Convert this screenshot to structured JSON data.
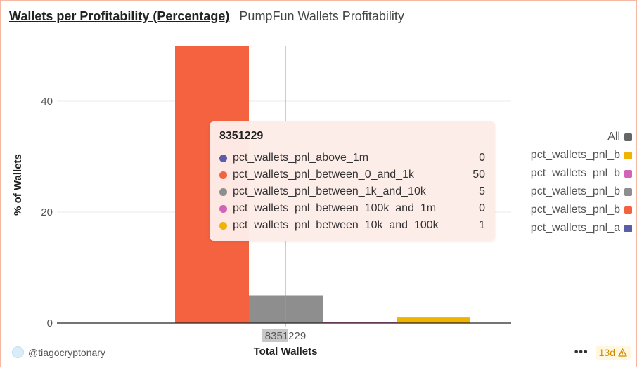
{
  "header": {
    "title": "Wallets per Profitability (Percentage)",
    "subtitle": "PumpFun Wallets Profitability"
  },
  "chart_data": {
    "type": "bar",
    "categories": [
      "8351229"
    ],
    "xlabel": "Total Wallets",
    "ylabel": "% of Wallets",
    "ylim": [
      0,
      50
    ],
    "yticks": [
      0,
      20,
      40
    ],
    "grid": true,
    "legend_position": "right",
    "series": [
      {
        "name": "pct_wallets_pnl_above_1m",
        "values": [
          0
        ],
        "color": "#5b5ea6"
      },
      {
        "name": "pct_wallets_pnl_between_0_and_1k",
        "values": [
          50
        ],
        "color": "#f4623f"
      },
      {
        "name": "pct_wallets_pnl_between_1k_and_10k",
        "values": [
          5
        ],
        "color": "#8e8e8e"
      },
      {
        "name": "pct_wallets_pnl_between_100k_and_1m",
        "values": [
          0
        ],
        "color": "#d263b8"
      },
      {
        "name": "pct_wallets_pnl_between_10k_and_100k",
        "values": [
          1
        ],
        "color": "#f0b400"
      }
    ]
  },
  "tooltip": {
    "title": "8351229",
    "rows": [
      {
        "label": "pct_wallets_pnl_above_1m",
        "value": "0",
        "color": "#5b5ea6"
      },
      {
        "label": "pct_wallets_pnl_between_0_and_1k",
        "value": "50",
        "color": "#f4623f"
      },
      {
        "label": "pct_wallets_pnl_between_1k_and_10k",
        "value": "5",
        "color": "#8e8e8e"
      },
      {
        "label": "pct_wallets_pnl_between_100k_and_1m",
        "value": "0",
        "color": "#d263b8"
      },
      {
        "label": "pct_wallets_pnl_between_10k_and_100k",
        "value": "1",
        "color": "#f0b400"
      }
    ]
  },
  "legend": {
    "items": [
      {
        "label": "All",
        "color": "#666666"
      },
      {
        "label": "pct_wallets_pnl_b",
        "color": "#f0b400"
      },
      {
        "label": "pct_wallets_pnl_b",
        "color": "#d263b8"
      },
      {
        "label": "pct_wallets_pnl_b",
        "color": "#8e8e8e"
      },
      {
        "label": "pct_wallets_pnl_b",
        "color": "#f4623f"
      },
      {
        "label": "pct_wallets_pnl_a",
        "color": "#5b5ea6"
      }
    ]
  },
  "footer": {
    "author": "@tiagocryptonary",
    "more": "•••",
    "age": "13d",
    "warning_icon": "warning-icon"
  }
}
